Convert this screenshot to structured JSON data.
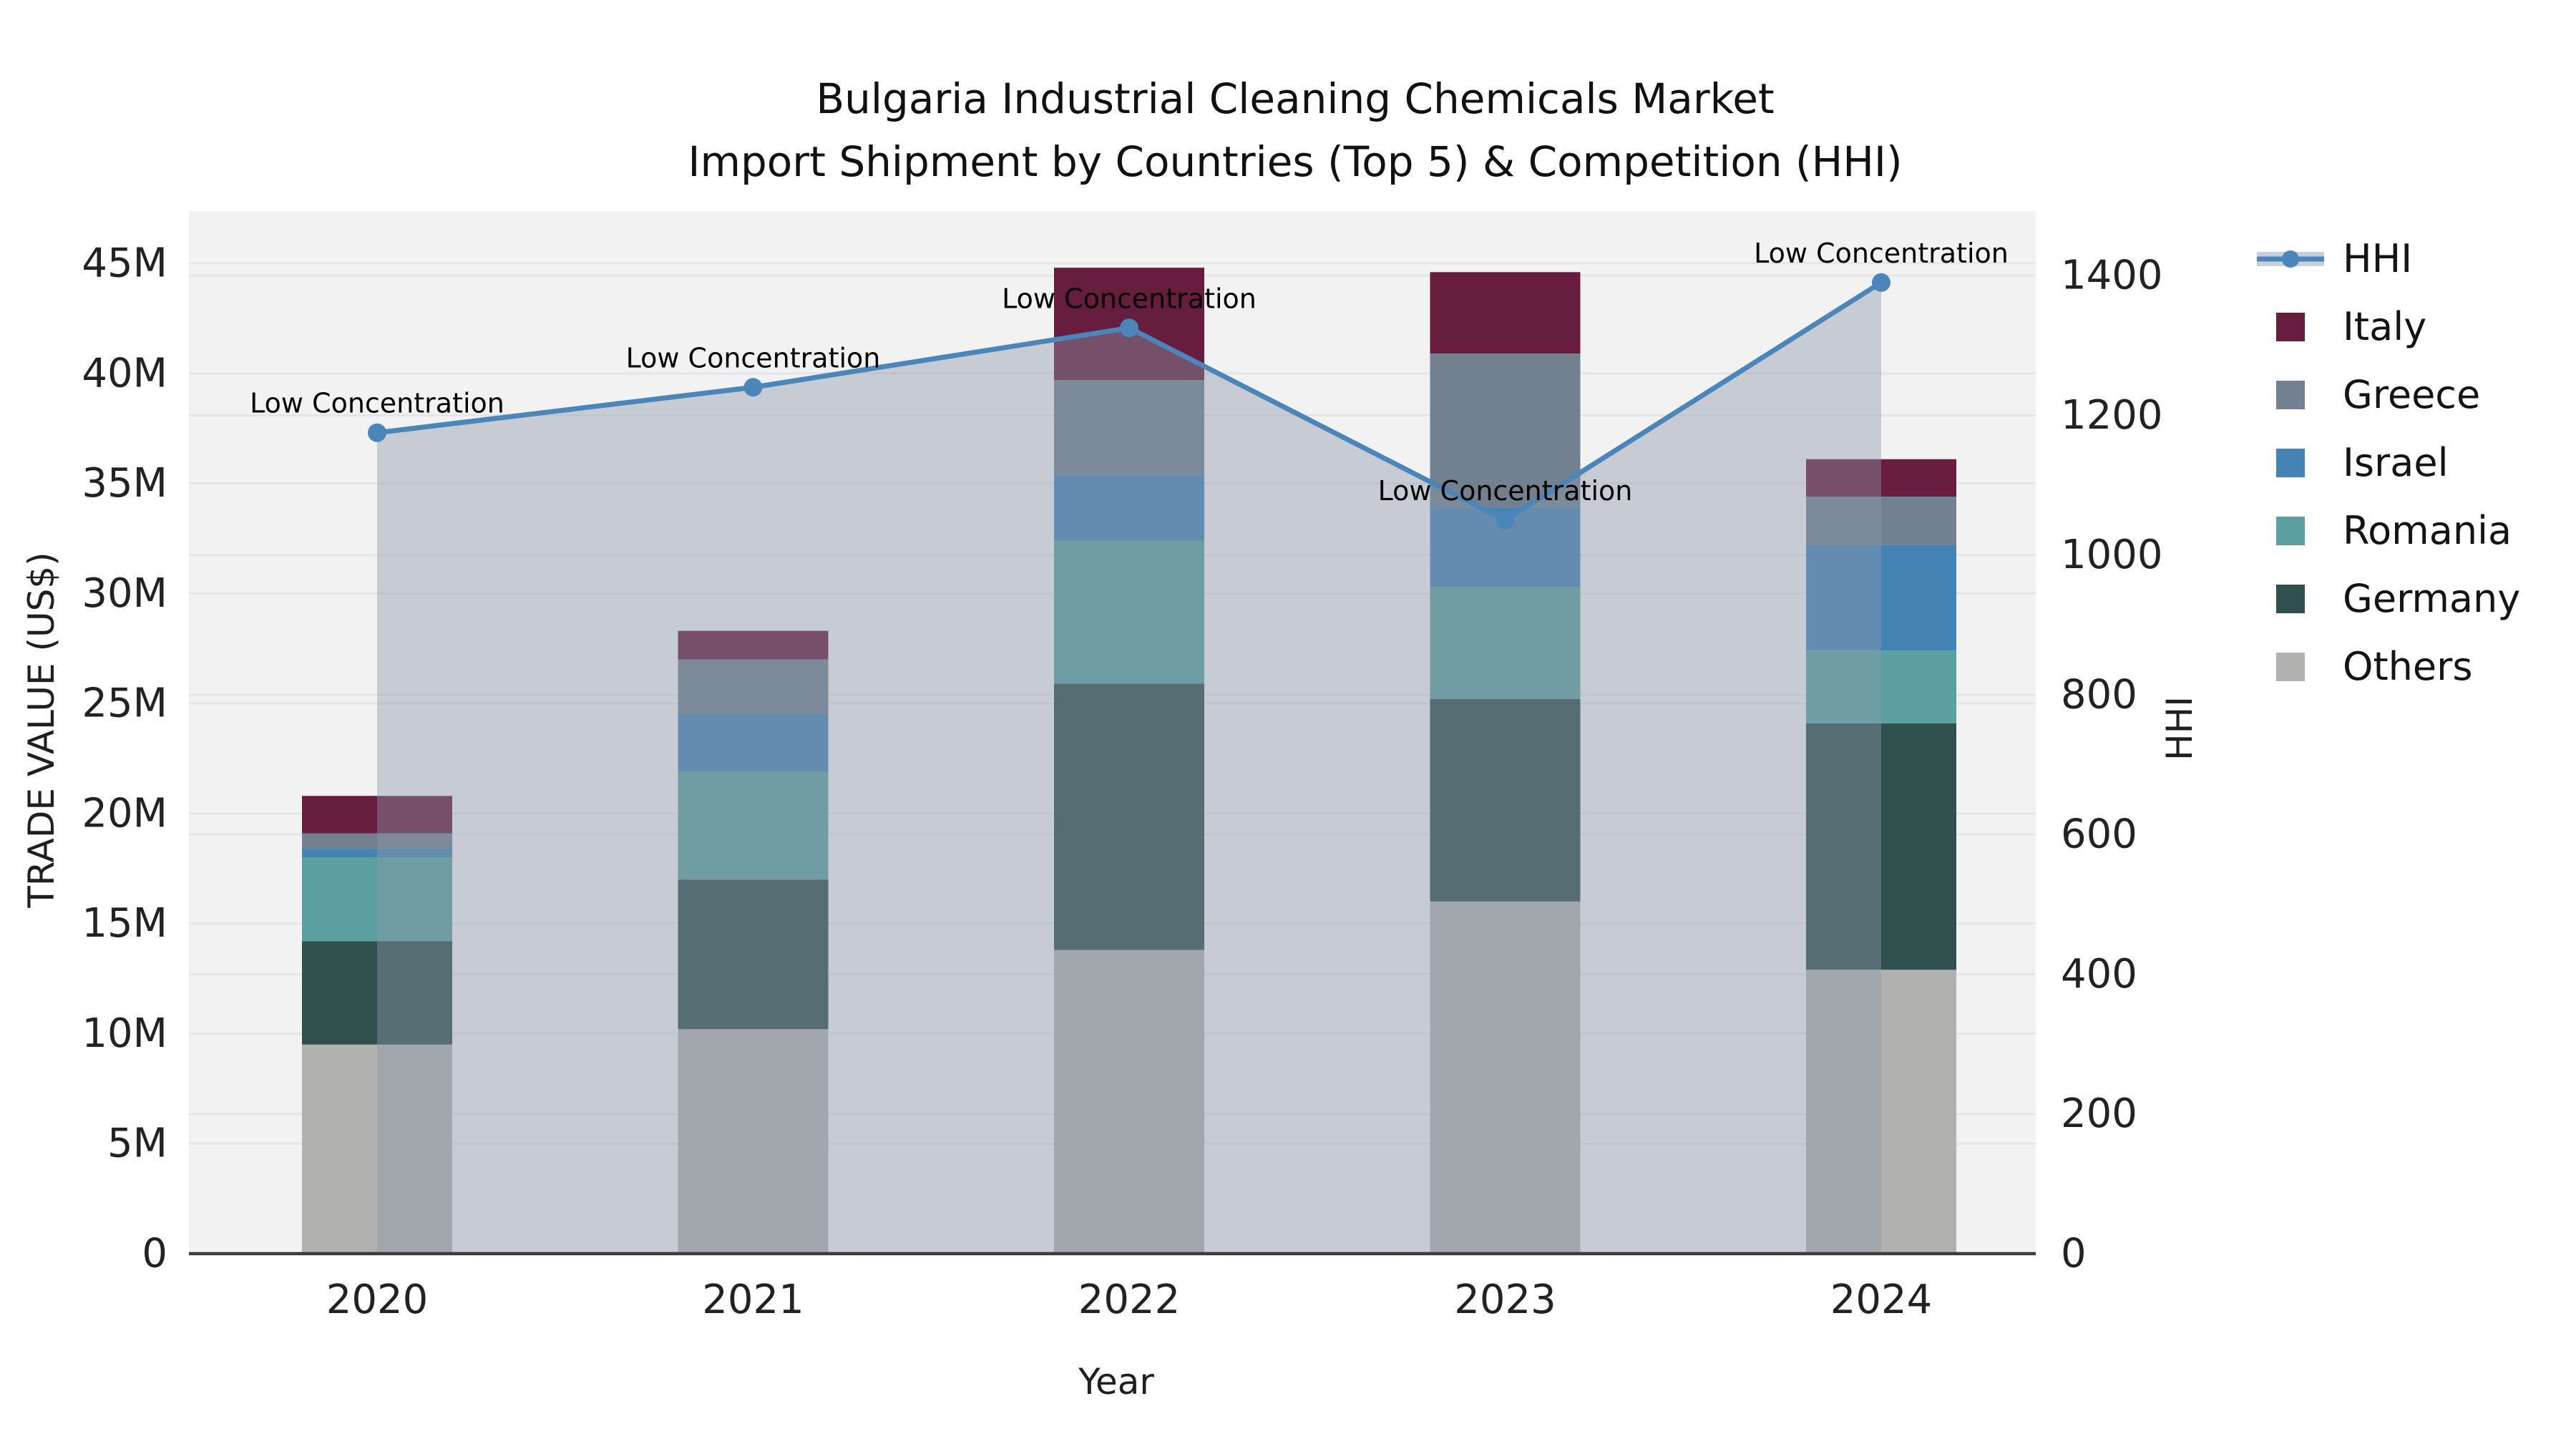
{
  "title": {
    "line1": "Bulgaria Industrial Cleaning Chemicals Market",
    "line2": "Import Shipment by Countries (Top 5) & Competition (HHI)"
  },
  "axes": {
    "x_label": "Year",
    "y_left_label": "TRADE VALUE (US$)",
    "y_right_label": "HHI",
    "x_ticks": [
      "2020",
      "2021",
      "2022",
      "2023",
      "2024"
    ],
    "y_left_ticks": [
      {
        "value": 0,
        "label": "0"
      },
      {
        "value": 5,
        "label": "5M"
      },
      {
        "value": 10,
        "label": "10M"
      },
      {
        "value": 15,
        "label": "15M"
      },
      {
        "value": 20,
        "label": "20M"
      },
      {
        "value": 25,
        "label": "25M"
      },
      {
        "value": 30,
        "label": "30M"
      },
      {
        "value": 35,
        "label": "35M"
      },
      {
        "value": 40,
        "label": "40M"
      },
      {
        "value": 45,
        "label": "45M"
      }
    ],
    "y_right_ticks": [
      {
        "value": 0,
        "label": "0"
      },
      {
        "value": 200,
        "label": "200"
      },
      {
        "value": 400,
        "label": "400"
      },
      {
        "value": 600,
        "label": "600"
      },
      {
        "value": 800,
        "label": "800"
      },
      {
        "value": 1000,
        "label": "1000"
      },
      {
        "value": 1200,
        "label": "1200"
      },
      {
        "value": 1400,
        "label": "1400"
      }
    ],
    "ylim_left_millions": [
      0,
      47.4
    ],
    "ylim_right": [
      0,
      1492
    ],
    "grid": true
  },
  "chart_data": {
    "type": "bar",
    "subtype": "stacked-bars-with-line-area",
    "categories": [
      "2020",
      "2021",
      "2022",
      "2023",
      "2024"
    ],
    "bar_value_unit": "million US$",
    "series": [
      {
        "name": "Others",
        "color": "#b1b1b0",
        "values": [
          9.5,
          10.2,
          13.8,
          16.0,
          12.9
        ]
      },
      {
        "name": "Germany",
        "color": "#2f504d",
        "values": [
          4.7,
          6.8,
          12.1,
          9.2,
          11.2
        ]
      },
      {
        "name": "Romania",
        "color": "#5c9fa0",
        "values": [
          3.8,
          4.9,
          6.5,
          5.1,
          3.3
        ]
      },
      {
        "name": "Israel",
        "color": "#4583b5",
        "values": [
          0.4,
          2.6,
          3.0,
          3.6,
          4.8
        ]
      },
      {
        "name": "Greece",
        "color": "#72808f",
        "values": [
          0.7,
          2.5,
          4.3,
          7.0,
          2.2
        ]
      },
      {
        "name": "Italy",
        "color": "#671d3d",
        "values": [
          1.7,
          1.3,
          5.1,
          3.7,
          1.7
        ]
      }
    ],
    "bar_totals_millions": [
      20.8,
      28.3,
      44.8,
      44.6,
      36.1
    ],
    "line_series": {
      "name": "HHI",
      "color": "#4a86ba",
      "area_fill_color": "rgba(140, 152, 170, 0.42)",
      "values": [
        1175,
        1240,
        1325,
        1050,
        1390
      ]
    },
    "annotations": [
      {
        "category": "2020",
        "text": "Low Concentration"
      },
      {
        "category": "2021",
        "text": "Low Concentration"
      },
      {
        "category": "2022",
        "text": "Low Concentration"
      },
      {
        "category": "2023",
        "text": "Low Concentration"
      },
      {
        "category": "2024",
        "text": "Low Concentration"
      }
    ],
    "legend_position": "right"
  },
  "legend": {
    "items": [
      {
        "label": "HHI",
        "type": "line-marker",
        "color": "#4a86ba",
        "band_color": "#c9ced7"
      },
      {
        "label": "Italy",
        "type": "square",
        "color": "#671d3d"
      },
      {
        "label": "Greece",
        "type": "square",
        "color": "#72808f"
      },
      {
        "label": "Israel",
        "type": "square",
        "color": "#4583b5"
      },
      {
        "label": "Romania",
        "type": "square",
        "color": "#5c9fa0"
      },
      {
        "label": "Germany",
        "type": "square",
        "color": "#2f504d"
      },
      {
        "label": "Others",
        "type": "square",
        "color": "#b1b1b0"
      }
    ]
  },
  "colors": {
    "figure_bg": "#ffffff",
    "plot_bg": "#f2f2f3",
    "gridline": "#e4e5e7",
    "bottom_spine": "#3b3b3b",
    "tick_text": "#222222",
    "annotation_text": "#000000"
  }
}
